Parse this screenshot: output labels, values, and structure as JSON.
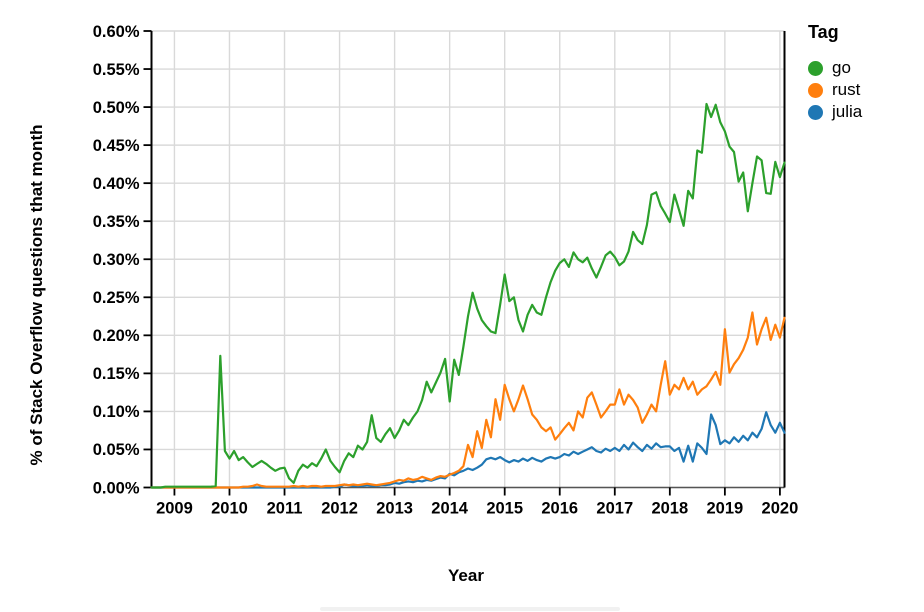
{
  "page": {
    "background": "#ffffff"
  },
  "legend": {
    "title": "Tag",
    "items": [
      {
        "label": "go",
        "color": "#2ca02c"
      },
      {
        "label": "rust",
        "color": "#ff7f0e"
      },
      {
        "label": "julia",
        "color": "#1f77b4"
      }
    ]
  },
  "chart_data": {
    "type": "line",
    "title": "",
    "xlabel": "Year",
    "ylabel": "% of Stack Overflow questions that month",
    "grid": true,
    "legend_position": "right",
    "ylim": [
      0,
      0.6
    ],
    "x_domain_years": [
      2008.5833,
      2020.0833
    ],
    "start_month": "2008-08",
    "frequency": "monthly",
    "x_ticks": [
      2009,
      2010,
      2011,
      2012,
      2013,
      2014,
      2015,
      2016,
      2017,
      2018,
      2019,
      2020
    ],
    "x_tick_labels": [
      "2009",
      "2010",
      "2011",
      "2012",
      "2013",
      "2014",
      "2015",
      "2016",
      "2017",
      "2018",
      "2019",
      "2020"
    ],
    "y_tick_values": [
      0,
      0.05,
      0.1,
      0.15,
      0.2,
      0.25,
      0.3,
      0.35,
      0.4,
      0.45,
      0.5,
      0.55,
      0.6
    ],
    "y_tick_labels": [
      "0.00%",
      "0.05%",
      "0.10%",
      "0.15%",
      "0.20%",
      "0.25%",
      "0.30%",
      "0.35%",
      "0.40%",
      "0.45%",
      "0.50%",
      "0.55%",
      "0.60%"
    ],
    "unit": "percent",
    "series": [
      {
        "name": "julia",
        "color": "#1f77b4",
        "values": [
          0,
          0,
          0,
          0,
          0,
          0,
          0,
          0,
          0,
          0,
          0,
          0,
          0,
          0,
          0,
          0,
          0,
          0,
          0,
          0,
          0,
          0,
          0,
          0,
          0,
          0,
          0,
          0,
          0,
          0,
          0,
          0,
          0,
          0,
          0,
          0,
          0,
          0,
          0,
          0,
          0.001,
          0.001,
          0.004,
          0.003,
          0.002,
          0.002,
          0.002,
          0.003,
          0.002,
          0.002,
          0.003,
          0.003,
          0.004,
          0.006,
          0.005,
          0.007,
          0.008,
          0.007,
          0.009,
          0.008,
          0.01,
          0.009,
          0.011,
          0.013,
          0.012,
          0.018,
          0.016,
          0.02,
          0.022,
          0.025,
          0.023,
          0.026,
          0.03,
          0.037,
          0.039,
          0.037,
          0.04,
          0.036,
          0.033,
          0.036,
          0.034,
          0.038,
          0.035,
          0.039,
          0.036,
          0.034,
          0.038,
          0.04,
          0.038,
          0.04,
          0.044,
          0.042,
          0.047,
          0.044,
          0.047,
          0.05,
          0.053,
          0.048,
          0.046,
          0.051,
          0.048,
          0.052,
          0.048,
          0.056,
          0.05,
          0.059,
          0.053,
          0.048,
          0.056,
          0.051,
          0.058,
          0.053,
          0.054,
          0.054,
          0.048,
          0.052,
          0.034,
          0.055,
          0.034,
          0.058,
          0.052,
          0.044,
          0.096,
          0.082,
          0.057,
          0.062,
          0.058,
          0.066,
          0.06,
          0.068,
          0.062,
          0.072,
          0.066,
          0.077,
          0.099,
          0.082,
          0.072,
          0.085,
          0.072
        ]
      },
      {
        "name": "rust",
        "color": "#ff7f0e",
        "values": [
          0,
          0,
          0,
          0,
          0,
          0,
          0,
          0,
          0,
          0,
          0,
          0,
          0,
          0,
          0,
          0,
          0,
          0,
          0,
          0,
          0.001,
          0.001,
          0.002,
          0.004,
          0.002,
          0.001,
          0.001,
          0.001,
          0.001,
          0.001,
          0.001,
          0.002,
          0.001,
          0.002,
          0.001,
          0.002,
          0.002,
          0.001,
          0.002,
          0.002,
          0.002,
          0.003,
          0.004,
          0.003,
          0.004,
          0.003,
          0.004,
          0.005,
          0.004,
          0.003,
          0.004,
          0.005,
          0.006,
          0.008,
          0.01,
          0.009,
          0.012,
          0.01,
          0.011,
          0.014,
          0.012,
          0.01,
          0.013,
          0.015,
          0.014,
          0.017,
          0.019,
          0.022,
          0.028,
          0.056,
          0.04,
          0.074,
          0.052,
          0.089,
          0.066,
          0.116,
          0.089,
          0.135,
          0.116,
          0.1,
          0.116,
          0.134,
          0.116,
          0.096,
          0.089,
          0.079,
          0.074,
          0.079,
          0.063,
          0.07,
          0.078,
          0.085,
          0.075,
          0.1,
          0.092,
          0.118,
          0.125,
          0.109,
          0.092,
          0.1,
          0.109,
          0.109,
          0.129,
          0.109,
          0.122,
          0.115,
          0.105,
          0.085,
          0.096,
          0.109,
          0.1,
          0.135,
          0.166,
          0.122,
          0.135,
          0.129,
          0.144,
          0.129,
          0.139,
          0.122,
          0.129,
          0.133,
          0.142,
          0.152,
          0.135,
          0.208,
          0.151,
          0.162,
          0.17,
          0.181,
          0.197,
          0.23,
          0.188,
          0.208,
          0.223,
          0.194,
          0.214,
          0.197,
          0.223
        ]
      },
      {
        "name": "go",
        "color": "#2ca02c",
        "values": [
          0,
          0,
          0,
          0.001,
          0.001,
          0.001,
          0.001,
          0.001,
          0.001,
          0.001,
          0.001,
          0.001,
          0.001,
          0.001,
          0.002,
          0.173,
          0.048,
          0.038,
          0.048,
          0.036,
          0.04,
          0.033,
          0.027,
          0.031,
          0.035,
          0.031,
          0.026,
          0.022,
          0.025,
          0.026,
          0.012,
          0.006,
          0.022,
          0.03,
          0.026,
          0.032,
          0.028,
          0.038,
          0.05,
          0.035,
          0.027,
          0.02,
          0.035,
          0.045,
          0.04,
          0.055,
          0.05,
          0.06,
          0.095,
          0.065,
          0.06,
          0.07,
          0.078,
          0.065,
          0.075,
          0.089,
          0.082,
          0.092,
          0.1,
          0.115,
          0.139,
          0.125,
          0.138,
          0.151,
          0.169,
          0.113,
          0.168,
          0.148,
          0.185,
          0.225,
          0.256,
          0.235,
          0.22,
          0.212,
          0.205,
          0.203,
          0.24,
          0.28,
          0.245,
          0.25,
          0.22,
          0.205,
          0.227,
          0.24,
          0.23,
          0.227,
          0.25,
          0.27,
          0.285,
          0.295,
          0.3,
          0.29,
          0.309,
          0.3,
          0.296,
          0.302,
          0.288,
          0.276,
          0.29,
          0.305,
          0.31,
          0.303,
          0.292,
          0.297,
          0.31,
          0.336,
          0.325,
          0.32,
          0.345,
          0.385,
          0.388,
          0.37,
          0.36,
          0.349,
          0.385,
          0.365,
          0.344,
          0.39,
          0.38,
          0.443,
          0.44,
          0.504,
          0.487,
          0.503,
          0.48,
          0.468,
          0.448,
          0.441,
          0.402,
          0.414,
          0.363,
          0.4,
          0.435,
          0.43,
          0.387,
          0.386,
          0.428,
          0.408,
          0.427
        ]
      }
    ],
    "style": {
      "gridline_color": "#d9d9d9",
      "axis_color": "#000000",
      "bottom_axis_color": "#555555",
      "tick_label_size": 16.5
    }
  }
}
